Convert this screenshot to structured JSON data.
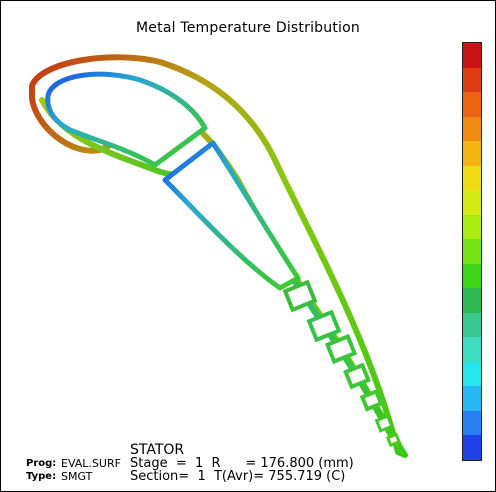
{
  "title": "Metal Temperature Distribution",
  "colorbar": {
    "colors": [
      "#c81414",
      "#e03c14",
      "#ec6414",
      "#f08c14",
      "#f4b414",
      "#f0dc14",
      "#d4ec14",
      "#a8ec14",
      "#74e414",
      "#3cd414",
      "#30b850",
      "#38c890",
      "#40dcc4",
      "#28e4ec",
      "#28b8f4",
      "#2880f0",
      "#2040e8"
    ]
  },
  "footer": {
    "prog_label": "Prog:",
    "prog_value": "EVAL.SURF",
    "type_label": "Type:",
    "type_value": "SMGT",
    "component": "STATOR",
    "line1": "Stage  =  1  R      = 176.800 (mm)",
    "line2": "Section=  1  T(Avr)= 755.719 (C)"
  }
}
